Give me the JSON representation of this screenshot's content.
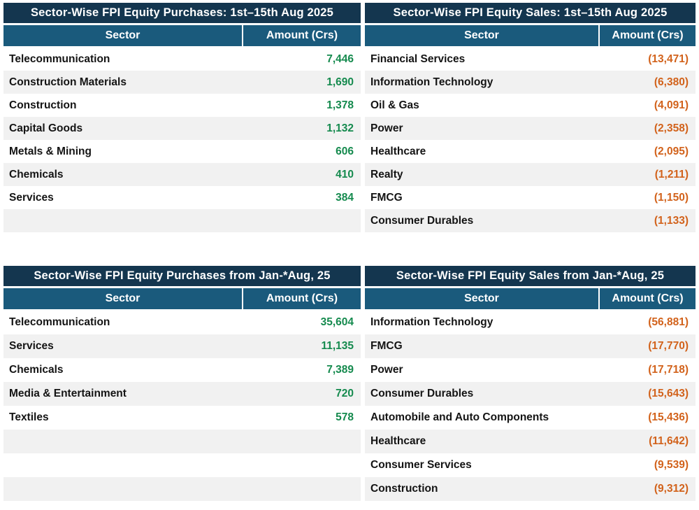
{
  "colors": {
    "title_bar": "#14364f",
    "column_header": "#1a5a7c",
    "row_alt": "#f1f1f1",
    "positive_amount": "#158a4e",
    "negative_amount": "#d2621b",
    "body_text": "#141414"
  },
  "tables": [
    {
      "title": "Sector-Wise FPI Equity Purchases: 1st–15th Aug 2025",
      "col_sector": "Sector",
      "col_amount": "Amount (Crs)",
      "value_sign": "positive",
      "rows": [
        {
          "sector": "Telecommunication",
          "amount": "7,446"
        },
        {
          "sector": "Construction Materials",
          "amount": "1,690"
        },
        {
          "sector": "Construction",
          "amount": "1,378"
        },
        {
          "sector": "Capital Goods",
          "amount": "1,132"
        },
        {
          "sector": "Metals & Mining",
          "amount": "606"
        },
        {
          "sector": "Chemicals",
          "amount": "410"
        },
        {
          "sector": "Services",
          "amount": "384"
        },
        {
          "sector": "",
          "amount": ""
        }
      ]
    },
    {
      "title": "Sector-Wise FPI Equity Sales: 1st–15th Aug 2025",
      "col_sector": "Sector",
      "col_amount": "Amount (Crs)",
      "value_sign": "negative",
      "rows": [
        {
          "sector": "Financial Services",
          "amount": "(13,471)"
        },
        {
          "sector": "Information Technology",
          "amount": "(6,380)"
        },
        {
          "sector": "Oil & Gas",
          "amount": "(4,091)"
        },
        {
          "sector": "Power",
          "amount": "(2,358)"
        },
        {
          "sector": "Healthcare",
          "amount": "(2,095)"
        },
        {
          "sector": "Realty",
          "amount": "(1,211)"
        },
        {
          "sector": "FMCG",
          "amount": "(1,150)"
        },
        {
          "sector": "Consumer Durables",
          "amount": "(1,133)"
        }
      ]
    },
    {
      "title": "Sector-Wise FPI Equity Purchases from Jan-*Aug, 25",
      "col_sector": "Sector",
      "col_amount": "Amount (Crs)",
      "value_sign": "positive",
      "rows": [
        {
          "sector": "Telecommunication",
          "amount": "35,604"
        },
        {
          "sector": "Services",
          "amount": "11,135"
        },
        {
          "sector": "Chemicals",
          "amount": "7,389"
        },
        {
          "sector": "Media & Entertainment",
          "amount": "720"
        },
        {
          "sector": "Textiles",
          "amount": "578"
        },
        {
          "sector": "",
          "amount": ""
        },
        {
          "sector": "",
          "amount": ""
        },
        {
          "sector": "",
          "amount": ""
        }
      ]
    },
    {
      "title": "Sector-Wise FPI Equity Sales from Jan-*Aug, 25",
      "col_sector": "Sector",
      "col_amount": "Amount (Crs)",
      "value_sign": "negative",
      "rows": [
        {
          "sector": "Information Technology",
          "amount": "(56,881)"
        },
        {
          "sector": "FMCG",
          "amount": "(17,770)"
        },
        {
          "sector": "Power",
          "amount": "(17,718)"
        },
        {
          "sector": "Consumer Durables",
          "amount": "(15,643)"
        },
        {
          "sector": "Automobile and Auto Components",
          "amount": "(15,436)"
        },
        {
          "sector": "Healthcare",
          "amount": "(11,642)"
        },
        {
          "sector": "Consumer Services",
          "amount": "(9,539)"
        },
        {
          "sector": "Construction",
          "amount": "(9,312)"
        }
      ]
    }
  ]
}
